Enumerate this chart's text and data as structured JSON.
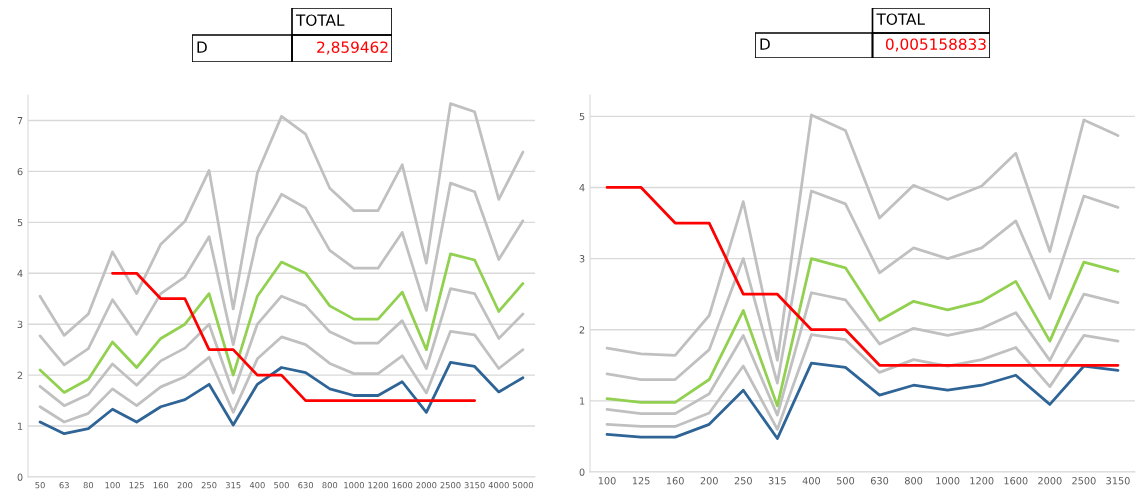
{
  "chart_data": [
    {
      "type": "line",
      "annotations": [
        "TOTAL",
        "D",
        "2,859462"
      ],
      "categories": [
        "50",
        "63",
        "80",
        "100",
        "125",
        "160",
        "200",
        "250",
        "315",
        "400",
        "500",
        "630",
        "800",
        "1000",
        "1200",
        "1600",
        "2000",
        "2500",
        "3150",
        "4000",
        "5000"
      ],
      "yticks": [
        0,
        1,
        2,
        3,
        4,
        5,
        6,
        7
      ],
      "ylim": [
        0,
        7.5
      ],
      "grid": "y",
      "series": [
        {
          "color": "#c0c0c0",
          "values": [
            3.55,
            2.78,
            3.2,
            4.42,
            3.6,
            4.57,
            5.02,
            6.02,
            3.3,
            5.97,
            7.08,
            6.73,
            5.67,
            5.23,
            5.23,
            6.13,
            4.2,
            7.33,
            7.17,
            5.45,
            6.38
          ]
        },
        {
          "color": "#c0c0c0",
          "values": [
            2.77,
            2.2,
            2.52,
            3.48,
            2.8,
            3.6,
            3.93,
            4.72,
            2.6,
            4.7,
            5.55,
            5.28,
            4.45,
            4.1,
            4.1,
            4.8,
            3.27,
            5.77,
            5.6,
            4.27,
            5.03
          ]
        },
        {
          "color": "#c0c0c0",
          "values": [
            1.78,
            1.4,
            1.62,
            2.22,
            1.8,
            2.28,
            2.53,
            3.0,
            1.65,
            3.0,
            3.55,
            3.36,
            2.85,
            2.63,
            2.63,
            3.07,
            2.13,
            3.7,
            3.6,
            2.72,
            3.2
          ]
        },
        {
          "color": "#c0c0c0",
          "values": [
            1.38,
            1.08,
            1.25,
            1.73,
            1.4,
            1.77,
            1.97,
            2.35,
            1.27,
            2.32,
            2.75,
            2.6,
            2.23,
            2.03,
            2.03,
            2.38,
            1.65,
            2.86,
            2.79,
            2.13,
            2.5
          ]
        },
        {
          "color": "#92d050",
          "values": [
            2.1,
            1.66,
            1.92,
            2.65,
            2.15,
            2.72,
            3.0,
            3.6,
            2.0,
            3.55,
            4.22,
            4.0,
            3.36,
            3.1,
            3.1,
            3.63,
            2.5,
            4.38,
            4.26,
            3.25,
            3.8
          ]
        },
        {
          "color": "#2e6496",
          "values": [
            1.08,
            0.85,
            0.95,
            1.33,
            1.08,
            1.38,
            1.52,
            1.82,
            1.02,
            1.82,
            2.15,
            2.05,
            1.73,
            1.6,
            1.6,
            1.87,
            1.27,
            2.25,
            2.17,
            1.67,
            1.95
          ]
        },
        {
          "color": "#ff0000",
          "values": [
            null,
            null,
            null,
            4,
            4,
            3.5,
            3.5,
            2.5,
            2.5,
            2,
            2,
            1.5,
            1.5,
            1.5,
            1.5,
            1.5,
            1.5,
            1.5,
            1.5,
            null,
            null
          ]
        }
      ]
    },
    {
      "type": "line",
      "annotations": [
        "TOTAL",
        "D",
        "0,005158833"
      ],
      "categories": [
        "100",
        "125",
        "160",
        "200",
        "250",
        "315",
        "400",
        "500",
        "630",
        "800",
        "1000",
        "1200",
        "1600",
        "2000",
        "2500",
        "3150"
      ],
      "yticks": [
        0,
        1,
        2,
        3,
        4,
        5
      ],
      "ylim": [
        0,
        5.3
      ],
      "grid": "y",
      "series": [
        {
          "color": "#c0c0c0",
          "values": [
            1.74,
            1.66,
            1.64,
            2.2,
            3.8,
            1.57,
            5.02,
            4.8,
            3.57,
            4.03,
            3.83,
            4.02,
            4.48,
            3.1,
            4.95,
            4.73
          ]
        },
        {
          "color": "#c0c0c0",
          "values": [
            1.38,
            1.3,
            1.3,
            1.72,
            3.0,
            1.25,
            3.95,
            3.77,
            2.8,
            3.15,
            3.0,
            3.15,
            3.53,
            2.44,
            3.88,
            3.72
          ]
        },
        {
          "color": "#c0c0c0",
          "values": [
            0.88,
            0.82,
            0.82,
            1.1,
            1.92,
            0.8,
            2.52,
            2.42,
            1.8,
            2.02,
            1.92,
            2.02,
            2.24,
            1.57,
            2.5,
            2.38
          ]
        },
        {
          "color": "#c0c0c0",
          "values": [
            0.67,
            0.64,
            0.64,
            0.83,
            1.49,
            0.6,
            1.93,
            1.86,
            1.4,
            1.58,
            1.49,
            1.58,
            1.75,
            1.2,
            1.92,
            1.84
          ]
        },
        {
          "color": "#92d050",
          "values": [
            1.03,
            0.98,
            0.98,
            1.3,
            2.27,
            0.93,
            3.0,
            2.87,
            2.13,
            2.4,
            2.28,
            2.4,
            2.68,
            1.84,
            2.95,
            2.82
          ]
        },
        {
          "color": "#2e6496",
          "values": [
            0.53,
            0.49,
            0.49,
            0.67,
            1.15,
            0.47,
            1.53,
            1.47,
            1.08,
            1.22,
            1.15,
            1.22,
            1.36,
            0.95,
            1.49,
            1.43
          ]
        },
        {
          "color": "#ff0000",
          "values": [
            4,
            4,
            3.5,
            3.5,
            2.5,
            2.5,
            2,
            2,
            1.5,
            1.5,
            1.5,
            1.5,
            1.5,
            1.5,
            1.5,
            1.5
          ]
        }
      ]
    }
  ]
}
